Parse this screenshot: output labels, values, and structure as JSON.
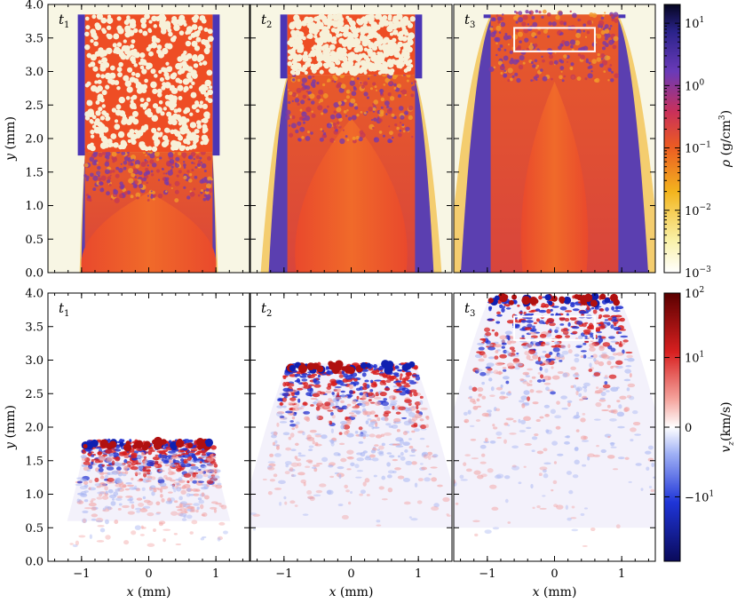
{
  "chart_data": {
    "type": "heatmap",
    "x_axis": {
      "label_var": "x",
      "label_unit": " (mm)",
      "range": [
        -1.5,
        1.5
      ],
      "ticks": [
        -1,
        0,
        1
      ],
      "tick_labels": [
        "−1",
        "0",
        "1"
      ]
    },
    "y_axis": {
      "label_var": "y",
      "label_unit": " (mm)",
      "range": [
        0.0,
        4.0
      ],
      "ticks": [
        0,
        0.5,
        1,
        1.5,
        2,
        2.5,
        3,
        3.5,
        4
      ],
      "tick_labels": [
        "0.0",
        "0.5",
        "1.0",
        "1.5",
        "2.0",
        "2.5",
        "3.0",
        "3.5",
        "4.0"
      ]
    },
    "rows": [
      {
        "quantity": "density",
        "colorbar": {
          "label_var": "ρ",
          "label_unit": " (g/cm",
          "label_sup": "3",
          "label_tail": ")",
          "scale": "log",
          "range": [
            0.001,
            20
          ],
          "tick_values": [
            0.001,
            0.01,
            0.1,
            1,
            10
          ],
          "tick_mant": [
            "10",
            "10",
            "10",
            "10",
            "10"
          ],
          "tick_exp": [
            "−3",
            "−2",
            "−1",
            "0",
            "1"
          ]
        },
        "panels": [
          {
            "label_var": "t",
            "label_sub": "1",
            "interface_y": 1.8,
            "wall_half": 0.95,
            "cloud_top": 1.8
          },
          {
            "label_var": "t",
            "label_sub": "2",
            "interface_y": 2.95,
            "wall_half": 0.95,
            "cloud_top": 2.95
          },
          {
            "label_var": "t",
            "label_sub": "3",
            "interface_y": 3.85,
            "wall_half": 0.95,
            "cloud_top": 3.85,
            "box": [
              -0.6,
              0.6,
              3.3,
              3.65
            ]
          }
        ]
      },
      {
        "quantity": "velocity",
        "colorbar": {
          "label_var": "v",
          "label_sub": "z",
          "label_unit": "(km/s)",
          "scale": "symlog",
          "range": [
            -100,
            100
          ],
          "tick_values": [
            -10,
            0,
            10,
            100
          ],
          "tick_mant": [
            "−10",
            "0",
            "10",
            "10"
          ],
          "tick_exp": [
            "1",
            "",
            "1",
            "2"
          ]
        },
        "panels": [
          {
            "label_var": "t",
            "label_sub": "1",
            "front_y": 1.8,
            "tail_y": 0.6
          },
          {
            "label_var": "t",
            "label_sub": "2",
            "front_y": 2.95,
            "tail_y": 0.5
          },
          {
            "label_var": "t",
            "label_sub": "3",
            "front_y": 3.95,
            "tail_y": 0.5,
            "box": [
              -0.6,
              0.6,
              3.3,
              3.65
            ]
          }
        ]
      }
    ]
  }
}
